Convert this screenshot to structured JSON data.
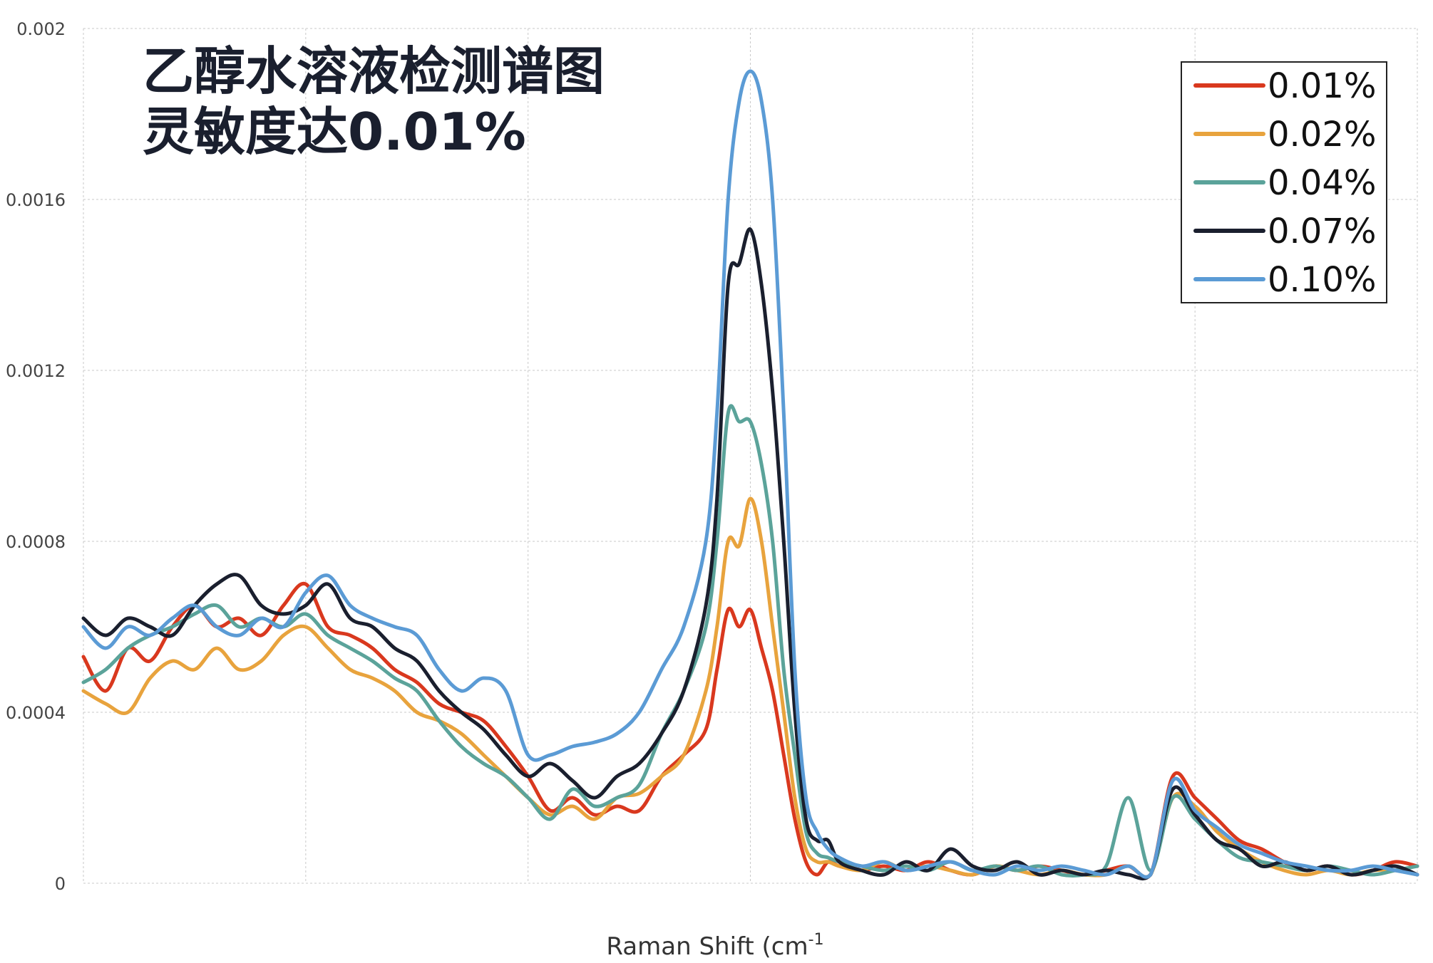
{
  "chart_data": {
    "type": "line",
    "title_lines": [
      "乙醇水溶液检测谱图",
      "灵敏度达0.01%"
    ],
    "xlabel": "Raman Shift (cm",
    "xlabel_sup": "-1",
    "ylabel": "",
    "ylim": [
      0,
      0.002
    ],
    "yticks": [
      {
        "value": 0,
        "label": "0"
      },
      {
        "value": 0.0004,
        "label": "0.0004"
      },
      {
        "value": 0.0008,
        "label": "0.0008"
      },
      {
        "value": 0.0012,
        "label": "0.0012"
      },
      {
        "value": 0.0016,
        "label": "0.0016"
      },
      {
        "value": 0.002,
        "label": "0.002"
      }
    ],
    "xlim": [
      0,
      1200
    ],
    "xgrid": [
      200,
      400,
      600,
      800,
      1000
    ],
    "grid": true,
    "legend_position": "top-right",
    "x": [
      0,
      20,
      40,
      60,
      80,
      100,
      120,
      140,
      160,
      180,
      200,
      220,
      240,
      260,
      280,
      300,
      320,
      340,
      360,
      380,
      400,
      420,
      440,
      460,
      480,
      500,
      520,
      540,
      560,
      570,
      580,
      590,
      600,
      610,
      620,
      630,
      640,
      650,
      660,
      670,
      680,
      700,
      720,
      740,
      760,
      780,
      800,
      820,
      840,
      860,
      880,
      900,
      920,
      940,
      960,
      980,
      1000,
      1020,
      1040,
      1060,
      1080,
      1100,
      1120,
      1140,
      1160,
      1180,
      1200
    ],
    "series": [
      {
        "name": "0.01%",
        "color": "#d9381e",
        "values": [
          0.00053,
          0.00045,
          0.00055,
          0.00052,
          0.0006,
          0.00065,
          0.0006,
          0.00062,
          0.00058,
          0.00065,
          0.0007,
          0.0006,
          0.00058,
          0.00055,
          0.0005,
          0.00047,
          0.00042,
          0.0004,
          0.00038,
          0.00032,
          0.00025,
          0.00017,
          0.0002,
          0.00016,
          0.00018,
          0.00017,
          0.00025,
          0.0003,
          0.00036,
          0.0005,
          0.00064,
          0.0006,
          0.00064,
          0.00055,
          0.00045,
          0.0003,
          0.00015,
          5e-05,
          2e-05,
          5e-05,
          4e-05,
          3e-05,
          4e-05,
          3e-05,
          5e-05,
          3e-05,
          2e-05,
          4e-05,
          3e-05,
          4e-05,
          3e-05,
          2e-05,
          3e-05,
          4e-05,
          2e-05,
          0.00025,
          0.0002,
          0.00015,
          0.0001,
          8e-05,
          5e-05,
          3e-05,
          4e-05,
          2e-05,
          3e-05,
          5e-05,
          4e-05
        ]
      },
      {
        "name": "0.02%",
        "color": "#e8a33d",
        "values": [
          0.00045,
          0.00042,
          0.0004,
          0.00048,
          0.00052,
          0.0005,
          0.00055,
          0.0005,
          0.00052,
          0.00058,
          0.0006,
          0.00055,
          0.0005,
          0.00048,
          0.00045,
          0.0004,
          0.00038,
          0.00035,
          0.0003,
          0.00025,
          0.0002,
          0.00016,
          0.00018,
          0.00015,
          0.0002,
          0.00021,
          0.00025,
          0.0003,
          0.00045,
          0.0006,
          0.0008,
          0.00079,
          0.0009,
          0.0008,
          0.0006,
          0.0004,
          0.0002,
          8e-05,
          5e-05,
          5e-05,
          4e-05,
          3e-05,
          5e-05,
          3e-05,
          4e-05,
          3e-05,
          2e-05,
          4e-05,
          3e-05,
          2e-05,
          3e-05,
          2e-05,
          2e-05,
          4e-05,
          2e-05,
          0.0002,
          0.00018,
          0.00012,
          8e-05,
          5e-05,
          3e-05,
          2e-05,
          3e-05,
          2e-05,
          3e-05,
          3e-05,
          2e-05
        ]
      },
      {
        "name": "0.04%",
        "color": "#5ba39a",
        "values": [
          0.00047,
          0.0005,
          0.00055,
          0.00058,
          0.0006,
          0.00063,
          0.00065,
          0.0006,
          0.00062,
          0.0006,
          0.00063,
          0.00058,
          0.00055,
          0.00052,
          0.00048,
          0.00045,
          0.00038,
          0.00032,
          0.00028,
          0.00025,
          0.0002,
          0.00015,
          0.00022,
          0.00018,
          0.0002,
          0.00023,
          0.00035,
          0.00045,
          0.0006,
          0.0008,
          0.0011,
          0.00108,
          0.00108,
          0.00098,
          0.0008,
          0.0005,
          0.0003,
          0.00012,
          7e-05,
          6e-05,
          5e-05,
          4e-05,
          3e-05,
          4e-05,
          3e-05,
          5e-05,
          3e-05,
          4e-05,
          3e-05,
          4e-05,
          2e-05,
          2e-05,
          4e-05,
          0.0002,
          3e-05,
          0.0002,
          0.00015,
          0.0001,
          6e-05,
          5e-05,
          4e-05,
          3e-05,
          4e-05,
          3e-05,
          2e-05,
          3e-05,
          4e-05
        ]
      },
      {
        "name": "0.07%",
        "color": "#1a1f2e",
        "values": [
          0.00062,
          0.00058,
          0.00062,
          0.0006,
          0.00058,
          0.00065,
          0.0007,
          0.00072,
          0.00065,
          0.00063,
          0.00065,
          0.0007,
          0.00062,
          0.0006,
          0.00055,
          0.00052,
          0.00045,
          0.0004,
          0.00036,
          0.0003,
          0.00025,
          0.00028,
          0.00024,
          0.0002,
          0.00025,
          0.00028,
          0.00035,
          0.00045,
          0.00065,
          0.0009,
          0.0014,
          0.00145,
          0.00153,
          0.0014,
          0.00115,
          0.0008,
          0.0004,
          0.00015,
          0.0001,
          0.0001,
          5e-05,
          3e-05,
          2e-05,
          5e-05,
          3e-05,
          8e-05,
          4e-05,
          3e-05,
          5e-05,
          2e-05,
          3e-05,
          2e-05,
          3e-05,
          2e-05,
          2e-05,
          0.00022,
          0.00016,
          0.0001,
          8e-05,
          4e-05,
          5e-05,
          3e-05,
          4e-05,
          2e-05,
          3e-05,
          4e-05,
          2e-05
        ]
      },
      {
        "name": "0.10%",
        "color": "#5b9bd5",
        "values": [
          0.0006,
          0.00055,
          0.0006,
          0.00058,
          0.00062,
          0.00065,
          0.0006,
          0.00058,
          0.00062,
          0.0006,
          0.00068,
          0.00072,
          0.00065,
          0.00062,
          0.0006,
          0.00058,
          0.0005,
          0.00045,
          0.00048,
          0.00045,
          0.0003,
          0.0003,
          0.00032,
          0.00033,
          0.00035,
          0.0004,
          0.0005,
          0.0006,
          0.0008,
          0.0011,
          0.0016,
          0.00183,
          0.0019,
          0.00183,
          0.0016,
          0.0011,
          0.0005,
          0.0002,
          0.00012,
          8e-05,
          6e-05,
          4e-05,
          5e-05,
          3e-05,
          4e-05,
          5e-05,
          3e-05,
          2e-05,
          4e-05,
          3e-05,
          4e-05,
          3e-05,
          2e-05,
          4e-05,
          2e-05,
          0.00024,
          0.00017,
          0.00013,
          9e-05,
          7e-05,
          5e-05,
          4e-05,
          3e-05,
          3e-05,
          4e-05,
          3e-05,
          2e-05
        ]
      }
    ]
  }
}
